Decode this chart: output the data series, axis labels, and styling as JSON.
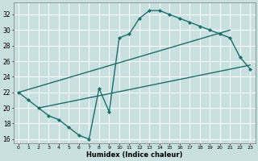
{
  "xlabel": "Humidex (Indice chaleur)",
  "bg_color": "#c8e0e0",
  "line_color": "#1a6e6a",
  "grid_color": "#ffffff",
  "xlim": [
    -0.5,
    23.5
  ],
  "ylim": [
    15.5,
    33.5
  ],
  "xticks": [
    0,
    1,
    2,
    3,
    4,
    5,
    6,
    7,
    8,
    9,
    10,
    11,
    12,
    13,
    14,
    15,
    16,
    17,
    18,
    19,
    20,
    21,
    22,
    23
  ],
  "yticks": [
    16,
    18,
    20,
    22,
    24,
    26,
    28,
    30,
    32
  ],
  "curve1_x": [
    0,
    1,
    2,
    3,
    4,
    5,
    6,
    7,
    8,
    9,
    10,
    11,
    12,
    13,
    14,
    15,
    16,
    17,
    18,
    19,
    20,
    21,
    22,
    23
  ],
  "curve1_y": [
    22,
    21,
    20.0,
    19.0,
    18.5,
    17.5,
    16.5,
    16.0,
    22.5,
    19.5,
    29,
    29.5,
    31.5,
    32.5,
    32.5,
    32,
    31.5,
    31,
    30.5,
    30.0,
    29.5,
    29,
    26.5,
    25.0
  ],
  "curve2_x": [
    0,
    21
  ],
  "curve2_y": [
    22,
    30
  ],
  "curve3_x": [
    2,
    23
  ],
  "curve3_y": [
    20,
    25.5
  ],
  "xlabel_fontsize": 6,
  "ytick_fontsize": 5.5,
  "xtick_fontsize": 4.5
}
